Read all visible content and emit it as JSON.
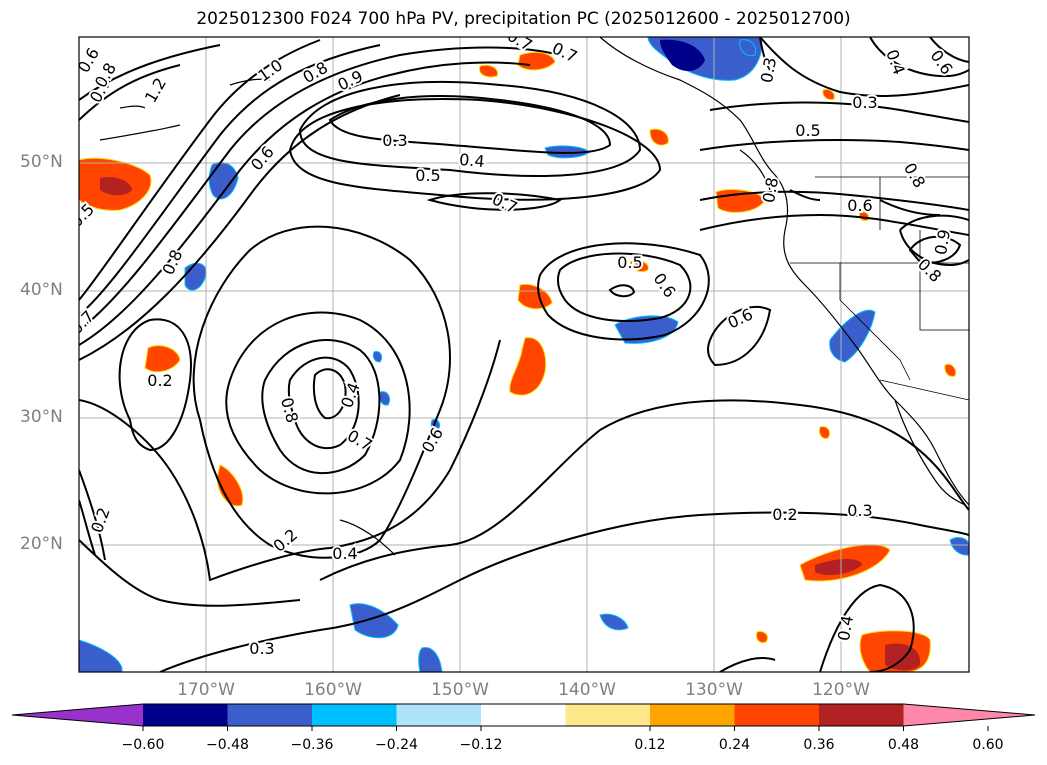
{
  "title": "2025012300 F024 700 hPa PV, precipitation PC (2025012600 - 2025012700)",
  "lat_labels": [
    "50°N",
    "40°N",
    "30°N",
    "20°N"
  ],
  "lon_labels": [
    "170°W",
    "160°W",
    "150°W",
    "140°W",
    "130°W",
    "120°W"
  ],
  "colorbar": {
    "ticks": [
      "−0.60",
      "−0.48",
      "−0.36",
      "−0.24",
      "−0.12",
      "0.12",
      "0.24",
      "0.36",
      "0.48",
      "0.60"
    ],
    "colors": [
      "#9932cc",
      "#00008b",
      "#3a5fcd",
      "#00bfff",
      "#afe3fa",
      "#ffffff",
      "#ffe78c",
      "#ffa500",
      "#ff4500",
      "#b22222",
      "#ff88aa"
    ]
  },
  "contour_labels": [
    "0.6",
    "0.7",
    "0.8",
    "1.2",
    "1.0",
    "0.8",
    "0.9",
    "0.6",
    "0.7",
    "0.7",
    "0.3",
    "0.4",
    "0.5",
    "0.3",
    "0.3",
    "0.4",
    "0.6",
    "0.7",
    "0.5",
    "0.6",
    "0.8",
    "0.8",
    "0.6",
    "0.9",
    "0.8",
    "0.8",
    "0.5",
    "0.7",
    "0.5",
    "0.6",
    "0.2",
    "0.4",
    "0.8",
    "0.7",
    "0.6",
    "0.4",
    "0.2",
    "0.3",
    "0.2",
    "0.2",
    "0.3",
    "0.4",
    "0.2"
  ]
}
